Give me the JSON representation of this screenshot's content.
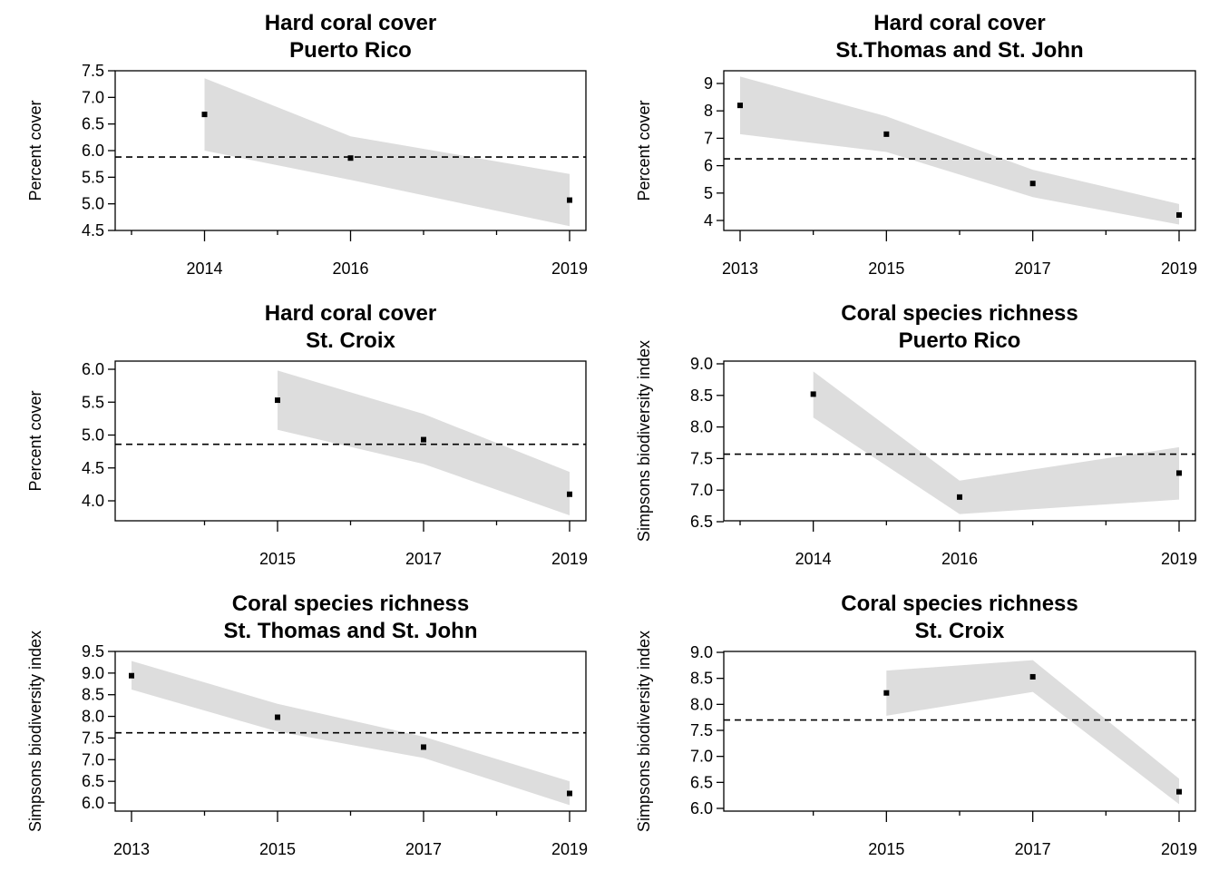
{
  "chart_data": [
    {
      "type": "line",
      "title": [
        "Hard coral cover",
        "Puerto Rico"
      ],
      "ylabel": "Percent cover",
      "xlabel": "",
      "grid": false,
      "xlim": [
        2013,
        2019
      ],
      "ylim": [
        4.5,
        7.5
      ],
      "yticks": [
        "4.5",
        "5.0",
        "5.5",
        "6.0",
        "6.5",
        "7.0",
        "7.5"
      ],
      "xticks": [
        "2014",
        "2016",
        "2019"
      ],
      "minor_xticks": [
        2013,
        2015,
        2017,
        2018
      ],
      "reference_line": 5.88,
      "x": [
        2014,
        2016,
        2019
      ],
      "values": [
        6.68,
        5.86,
        5.07
      ],
      "band_lower": [
        6.0,
        5.45,
        4.58
      ],
      "band_upper": [
        7.36,
        6.27,
        5.56
      ],
      "colors": {
        "band": "#dddddd",
        "point": "#000000",
        "reference": "#000000"
      }
    },
    {
      "type": "line",
      "title": [
        "Hard coral cover",
        "St.Thomas and St. John"
      ],
      "ylabel": "Percent cover",
      "xlabel": "",
      "grid": false,
      "xlim": [
        2013,
        2019
      ],
      "ylim": [
        4,
        9
      ],
      "yticks": [
        "4",
        "5",
        "6",
        "7",
        "8",
        "9"
      ],
      "xticks": [
        "2013",
        "2015",
        "2017",
        "2019"
      ],
      "minor_xticks": [
        2014,
        2016,
        2018
      ],
      "reference_line": 6.25,
      "x": [
        2013,
        2015,
        2017,
        2019
      ],
      "values": [
        8.2,
        7.15,
        5.35,
        4.2
      ],
      "band_lower": [
        7.15,
        6.5,
        4.85,
        3.85
      ],
      "band_upper": [
        9.25,
        7.8,
        5.85,
        4.6
      ],
      "colors": {
        "band": "#dddddd",
        "point": "#000000",
        "reference": "#000000"
      }
    },
    {
      "type": "line",
      "title": [
        "Hard coral cover",
        "St.  Croix"
      ],
      "ylabel": "Percent cover",
      "xlabel": "",
      "grid": false,
      "xlim": [
        2013,
        2019
      ],
      "ylim": [
        4.0,
        6.0
      ],
      "yticks": [
        "4.0",
        "4.5",
        "5.0",
        "5.5",
        "6.0"
      ],
      "xticks": [
        "2015",
        "2017",
        "2019"
      ],
      "minor_xticks": [
        2014,
        2016,
        2018
      ],
      "reference_line": 4.86,
      "x": [
        2015,
        2017,
        2019
      ],
      "values": [
        5.53,
        4.93,
        4.1
      ],
      "band_lower": [
        5.08,
        4.56,
        3.78
      ],
      "band_upper": [
        5.98,
        5.32,
        4.44
      ],
      "colors": {
        "band": "#dddddd",
        "point": "#000000",
        "reference": "#000000"
      }
    },
    {
      "type": "line",
      "title": [
        "Coral species richness",
        "Puerto Rico"
      ],
      "ylabel": "Simpsons biodiversity index",
      "xlabel": "",
      "grid": false,
      "xlim": [
        2013,
        2019
      ],
      "ylim": [
        6.5,
        9.0
      ],
      "yticks": [
        "6.5",
        "7.0",
        "7.5",
        "8.0",
        "8.5",
        "9.0"
      ],
      "xticks": [
        "2014",
        "2016",
        "2019"
      ],
      "minor_xticks": [
        2013,
        2015,
        2017,
        2018
      ],
      "reference_line": 7.57,
      "x": [
        2014,
        2016,
        2019
      ],
      "values": [
        8.52,
        6.89,
        7.27
      ],
      "band_lower": [
        8.15,
        6.62,
        6.85
      ],
      "band_upper": [
        8.88,
        7.15,
        7.68
      ],
      "colors": {
        "band": "#dddddd",
        "point": "#000000",
        "reference": "#000000"
      }
    },
    {
      "type": "line",
      "title": [
        "Coral species richness",
        "St. Thomas and St. John"
      ],
      "ylabel": "Simpsons biodiversity index",
      "xlabel": "",
      "grid": false,
      "xlim": [
        2013,
        2019
      ],
      "ylim": [
        6.0,
        9.5
      ],
      "yticks": [
        "6.0",
        "6.5",
        "7.0",
        "7.5",
        "8.0",
        "8.5",
        "9.0",
        "9.5"
      ],
      "xticks": [
        "2013",
        "2015",
        "2017",
        "2019"
      ],
      "minor_xticks": [
        2014,
        2016,
        2018
      ],
      "reference_line": 7.62,
      "x": [
        2013,
        2015,
        2017,
        2019
      ],
      "values": [
        8.94,
        7.98,
        7.29,
        6.22
      ],
      "band_lower": [
        8.62,
        7.65,
        7.04,
        5.95
      ],
      "band_upper": [
        9.28,
        8.29,
        7.53,
        6.5
      ],
      "colors": {
        "band": "#dddddd",
        "point": "#000000",
        "reference": "#000000"
      }
    },
    {
      "type": "line",
      "title": [
        "Coral species richness",
        "St. Croix"
      ],
      "ylabel": "Simpsons biodiversity index",
      "xlabel": "",
      "grid": false,
      "xlim": [
        2013,
        2019
      ],
      "ylim": [
        6.0,
        9.0
      ],
      "yticks": [
        "6.0",
        "6.5",
        "7.0",
        "7.5",
        "8.0",
        "8.5",
        "9.0"
      ],
      "xticks": [
        "2015",
        "2017",
        "2019"
      ],
      "minor_xticks": [
        2014,
        2016,
        2018
      ],
      "reference_line": 7.7,
      "x": [
        2015,
        2017,
        2019
      ],
      "values": [
        8.22,
        8.53,
        6.32
      ],
      "band_lower": [
        7.78,
        8.24,
        6.08
      ],
      "band_upper": [
        8.65,
        8.85,
        6.57
      ],
      "colors": {
        "band": "#dddddd",
        "point": "#000000",
        "reference": "#000000"
      }
    }
  ]
}
